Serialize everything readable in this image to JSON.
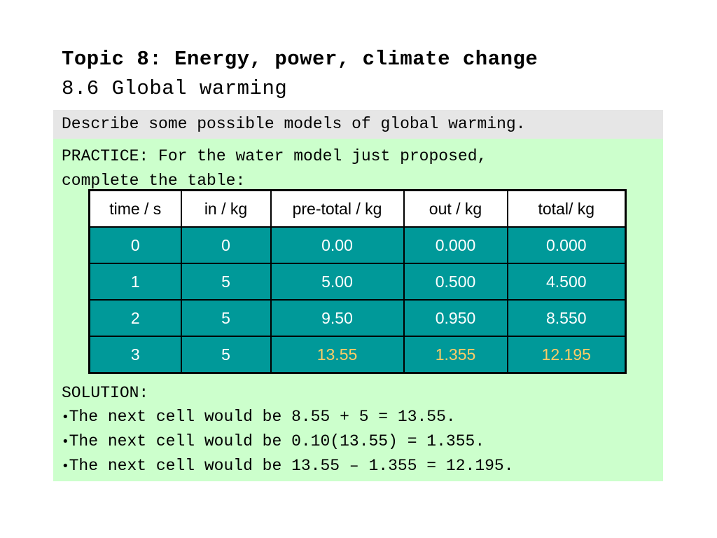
{
  "heading": {
    "title": "Topic 8: Energy, power, climate change",
    "subtitle": "8.6 Global warming"
  },
  "objective": "Describe some possible models of global warming.",
  "practice": {
    "line1": "PRACTICE: For the water model just proposed,",
    "line2": "complete the table:"
  },
  "table": {
    "headers": [
      "time / s",
      "in / kg",
      "pre-total / kg",
      "out / kg",
      "total/ kg"
    ],
    "rows": [
      [
        "0",
        "0",
        "0.00",
        "0.000",
        "0.000"
      ],
      [
        "1",
        "5",
        "5.00",
        "0.500",
        "4.500"
      ],
      [
        "2",
        "5",
        "9.50",
        "0.950",
        "8.550"
      ],
      [
        "3",
        "5",
        "13.55",
        "1.355",
        "12.195"
      ]
    ]
  },
  "solution": {
    "label": "SOLUTION:",
    "bullet": "•",
    "items": [
      "The next cell would be 8.55 + 5 = 13.55.",
      "The next cell would be 0.10(13.55) = 1.355.",
      "The next cell would be 13.55 – 1.355 = 12.195."
    ]
  },
  "colors": {
    "objective_bg": "#e6e6e6",
    "practice_bg": "#ccffcc",
    "cell_bg": "#009999",
    "cell_text": "#ffffff",
    "answer_text": "#ffcc66"
  }
}
